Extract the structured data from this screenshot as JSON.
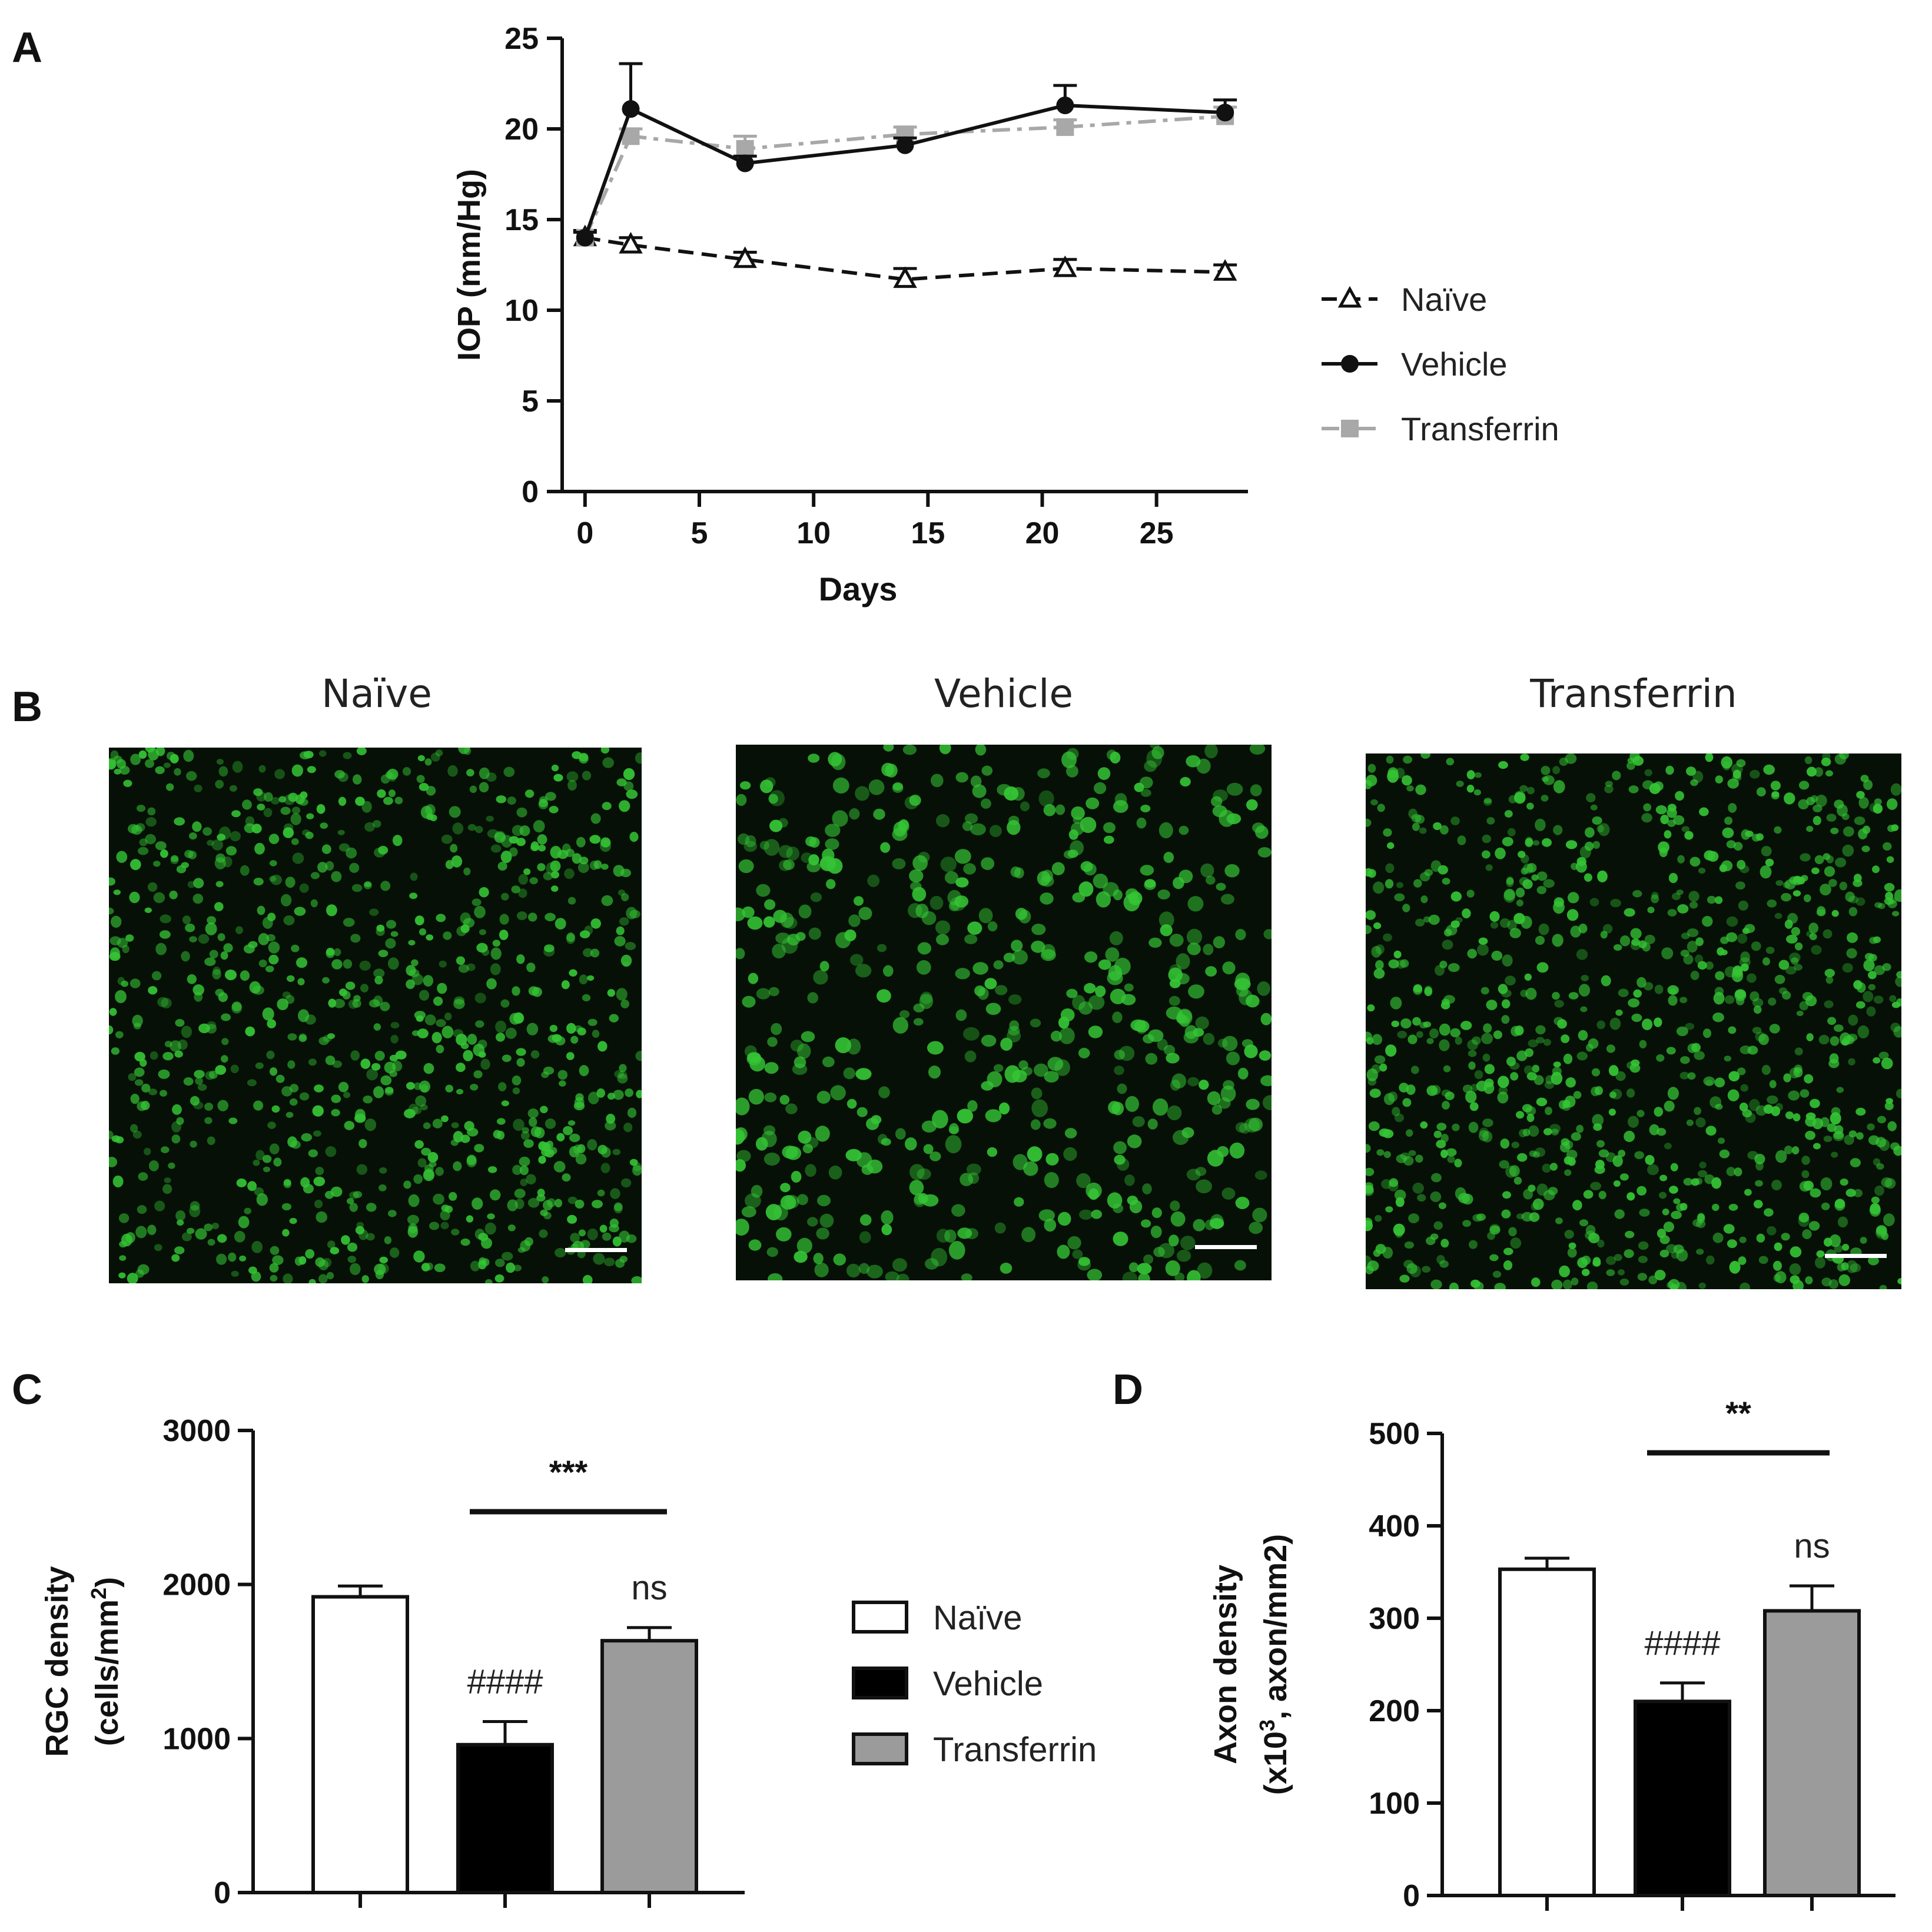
{
  "panels": {
    "A": "A",
    "B": "B",
    "C": "C",
    "D": "D"
  },
  "micrograph": {
    "titles": [
      "Naïve",
      "Vehicle",
      "Transferrin"
    ],
    "cell_color": "#35c435",
    "scale_bar_color": "#ffffff"
  },
  "chart_data": [
    {
      "id": "A",
      "type": "line",
      "xlabel": "Days",
      "ylabel": "IOP (mm/Hg)",
      "xlim": [
        -1,
        29
      ],
      "ylim": [
        0,
        25
      ],
      "xticks": [
        0,
        5,
        10,
        15,
        20,
        25
      ],
      "yticks": [
        0,
        5,
        10,
        15,
        20,
        25
      ],
      "x": [
        0,
        2,
        7,
        14,
        21,
        28
      ],
      "legend": "right",
      "series": [
        {
          "name": "Naïve",
          "marker": "triangle-open",
          "dash": "dashed",
          "color": "#111111",
          "values": [
            14.0,
            13.6,
            12.8,
            11.7,
            12.3,
            12.1
          ],
          "errors": [
            0.4,
            0.4,
            0.4,
            0.6,
            0.5,
            0.4
          ]
        },
        {
          "name": "Vehicle",
          "marker": "circle",
          "dash": "solid",
          "color": "#111111",
          "values": [
            14.0,
            21.1,
            18.1,
            19.1,
            21.3,
            20.9
          ],
          "errors": [
            0.3,
            2.5,
            0.4,
            0.4,
            1.1,
            0.7
          ]
        },
        {
          "name": "Transferrin",
          "marker": "square",
          "dash": "dashdot",
          "color": "#a8a8a8",
          "values": [
            14.0,
            19.6,
            18.9,
            19.7,
            20.1,
            20.7
          ],
          "errors": [
            0.3,
            0.4,
            0.7,
            0.4,
            0.4,
            0.5
          ]
        }
      ]
    },
    {
      "id": "C",
      "type": "bar",
      "ylabel_lines": [
        "RGC density",
        "(cells/mm",
        "2",
        ")"
      ],
      "ylim": [
        0,
        3000
      ],
      "yticks": [
        0,
        1000,
        2000,
        3000
      ],
      "categories": [
        "Naïve",
        "Vehicle",
        "Transferrin"
      ],
      "values": [
        1920,
        960,
        1635
      ],
      "errors": [
        70,
        150,
        85
      ],
      "colors": [
        "#ffffff",
        "#000000",
        "#9b9b9b"
      ],
      "bar_labels": [
        "",
        "####",
        "ns"
      ],
      "significance": {
        "from": 1,
        "to": 2,
        "label": "***"
      },
      "legend": "right"
    },
    {
      "id": "D",
      "type": "bar",
      "ylabel_lines": [
        "Axon density",
        "(x10",
        "3",
        ", axon/mm2)"
      ],
      "ylim": [
        0,
        500
      ],
      "yticks": [
        0,
        100,
        200,
        300,
        400,
        500
      ],
      "categories": [
        "Naïve",
        "Vehicle",
        "Transferrin"
      ],
      "values": [
        353,
        210,
        308
      ],
      "errors": [
        12,
        20,
        27
      ],
      "colors": [
        "#ffffff",
        "#000000",
        "#9b9b9b"
      ],
      "bar_labels": [
        "",
        "####",
        "ns"
      ],
      "significance": {
        "from": 1,
        "to": 2,
        "label": "**"
      }
    }
  ]
}
